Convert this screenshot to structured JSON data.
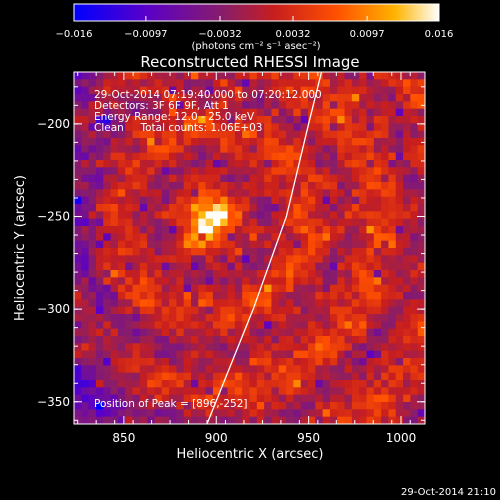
{
  "chart_data": {
    "type": "heatmap",
    "title": "Reconstructed RHESSI Image",
    "xlabel": "Heliocentric X (arcsec)",
    "ylabel": "Heliocentric Y (arcsec)",
    "xlim": [
      823,
      1013
    ],
    "ylim": [
      -362,
      -172
    ],
    "x_ticks": [
      850,
      900,
      950,
      1000
    ],
    "x_tick_labels": [
      "850",
      "900",
      "950",
      "1000"
    ],
    "y_ticks": [
      -200,
      -250,
      -300,
      -350
    ],
    "y_tick_labels": [
      "−200",
      "−250",
      "−300",
      "−350"
    ],
    "colorbar": {
      "min": -0.016,
      "max": 0.016,
      "ticks": [
        -0.016,
        -0.0097,
        -0.0032,
        0.0032,
        0.0097,
        0.016
      ],
      "tick_labels": [
        "−0.016",
        "−0.0097",
        "−0.0032",
        "0.0032",
        "0.0097",
        "0.016"
      ],
      "unit_label": "(photons cm⁻² s⁻¹ asec⁻²)",
      "colors": [
        "#0000ff",
        "#5a00c8",
        "#8c1e64",
        "#c81e1e",
        "#ff5000",
        "#ffb400",
        "#ffffff"
      ]
    },
    "annotations": [
      "29-Oct-2014 07:19:40.000 to 07:20:12.000",
      "Detectors: 3F 6F 9F, Att 1",
      "Energy Range: 12.0 - 25.0 keV",
      "Clean     Total counts: 1.06E+03",
      "Position of Peak = [896,-252]"
    ],
    "peak": {
      "x": 896,
      "y": -252
    },
    "limb_curve": [
      [
        895,
        -362
      ],
      [
        920,
        -300
      ],
      [
        938,
        -250
      ],
      [
        950,
        -200
      ],
      [
        957,
        -172
      ]
    ],
    "grid": false
  },
  "footer": {
    "timestamp": "29-Oct-2014 21:10"
  }
}
